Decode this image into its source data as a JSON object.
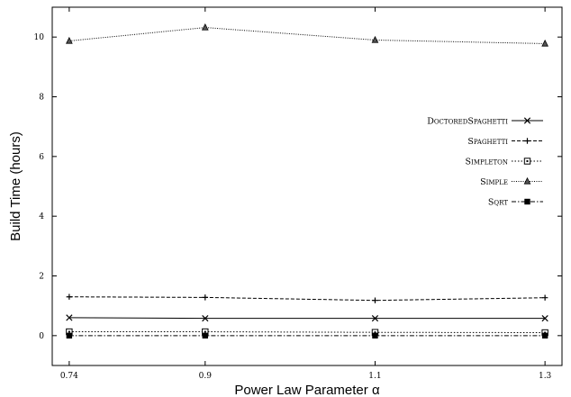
{
  "chart_data": {
    "type": "line",
    "xlabel": "Power Law Parameter α",
    "ylabel": "Build Time (hours)",
    "x": [
      0.74,
      0.9,
      1.1,
      1.3
    ],
    "x_tick_labels": [
      "0.74",
      "0.9",
      "1.1",
      "1.3"
    ],
    "xlim": [
      0.72,
      1.32
    ],
    "ylim": [
      -1,
      11
    ],
    "y_ticks": [
      0,
      2,
      4,
      6,
      8,
      10
    ],
    "legend_position": "right",
    "grid": false,
    "series": [
      {
        "name": "DoctoredSpaghetti",
        "values": [
          0.6,
          0.58,
          0.58,
          0.58
        ],
        "dash": "solid",
        "marker": "x"
      },
      {
        "name": "Spaghetti",
        "values": [
          1.3,
          1.28,
          1.18,
          1.27
        ],
        "dash": "dashed",
        "marker": "plus"
      },
      {
        "name": "Simpleton",
        "values": [
          0.13,
          0.13,
          0.11,
          0.1
        ],
        "dash": "dotted",
        "marker": "open-square"
      },
      {
        "name": "Simple",
        "values": [
          9.87,
          10.32,
          9.9,
          9.78
        ],
        "dash": "fine-dotted",
        "marker": "triangle"
      },
      {
        "name": "Sqrt",
        "values": [
          0.0,
          0.0,
          0.0,
          0.0
        ],
        "dash": "dash-dot",
        "marker": "filled-square"
      }
    ]
  }
}
